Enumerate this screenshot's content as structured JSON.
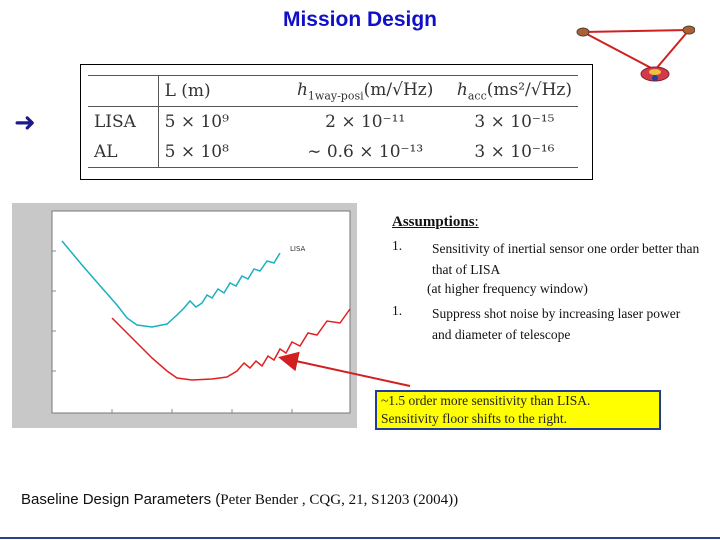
{
  "slide": {
    "title": "Mission Design",
    "arrow_glyph": "➜"
  },
  "table": {
    "headers": [
      "L (m)",
      "h_{1way-posi} (m/√Hz)",
      "h_{acc} (ms²/√Hz)"
    ],
    "header_display": {
      "col1": "L (m)",
      "col2_main": "h",
      "col2_sub": "1way-posi",
      "col2_unit": "(m/√Hz)",
      "col3_main": "h",
      "col3_sub": "acc",
      "col3_unit": "(ms²/√Hz)"
    },
    "rows": [
      {
        "name": "LISA",
        "L": "5 × 10⁹",
        "h_posi": "2 × 10⁻¹¹",
        "h_acc": "3 × 10⁻¹⁵"
      },
      {
        "name": "AL",
        "L": "5 × 10⁸",
        "h_posi": "∼ 0.6 × 10⁻¹³",
        "h_acc": "3 × 10⁻¹⁶"
      }
    ]
  },
  "plot": {
    "series_label": "LISA",
    "colors": {
      "lisa": "#1ab0c0",
      "al": "#e02020",
      "arrow": "#d22020",
      "frame": "#c8c8c8"
    }
  },
  "assumptions": {
    "heading": "Assumptions",
    "colon": ":",
    "item1_num": "1.",
    "item1_text": "Sensitivity of inertial sensor one order better than that of LISA",
    "item1_sub": "(at higher frequency window)",
    "item2_num": "1.",
    "item2_text": "Suppress shot noise by increasing laser power and diameter of telescope"
  },
  "callout": {
    "line1": "~1.5 order more sensitivity than LISA.",
    "line2": "Sensitivity floor shifts to the right."
  },
  "footer": {
    "label": "Baseline Design Parameters (",
    "ref": "Peter Bender , CQG, 21, S1203 (2004))"
  },
  "theme": {
    "title_color": "#1010c8",
    "accent_blue": "#2a3f8f",
    "callout_bg": "#ffff00"
  }
}
